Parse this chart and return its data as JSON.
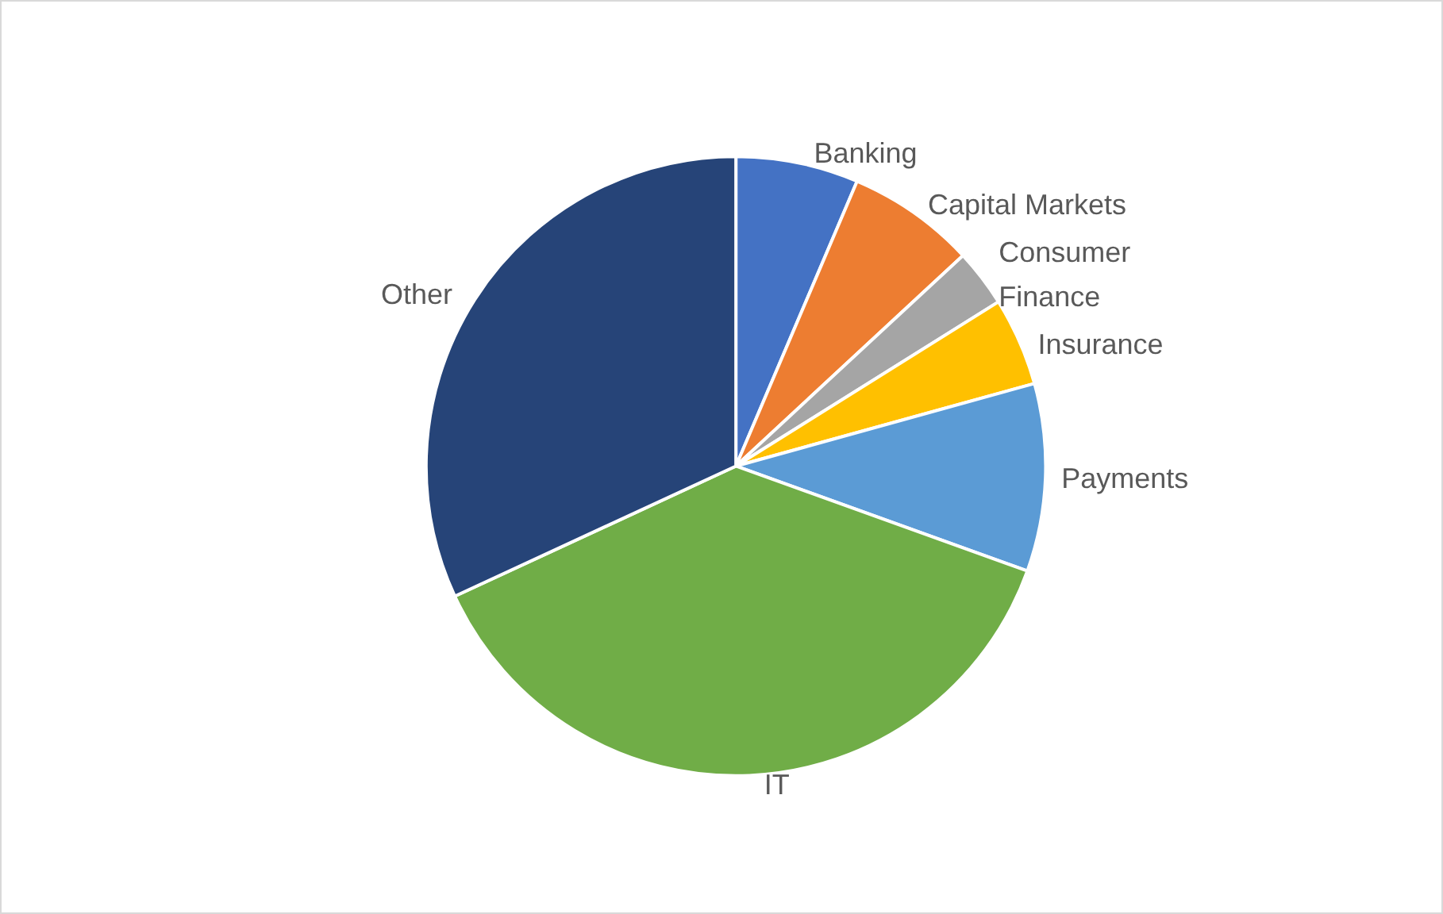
{
  "chart_data": {
    "type": "pie",
    "categories": [
      "Banking",
      "Capital Markets",
      "Consumer Finance",
      "Insurance",
      "Payments",
      "IT",
      "Other"
    ],
    "values": [
      6.4,
      6.7,
      3.0,
      4.6,
      9.8,
      37.6,
      31.9
    ],
    "colors": [
      "#4472c4",
      "#ed7d31",
      "#a5a5a5",
      "#ffc000",
      "#5b9bd5",
      "#70ad47",
      "#264478"
    ],
    "legend": false
  }
}
